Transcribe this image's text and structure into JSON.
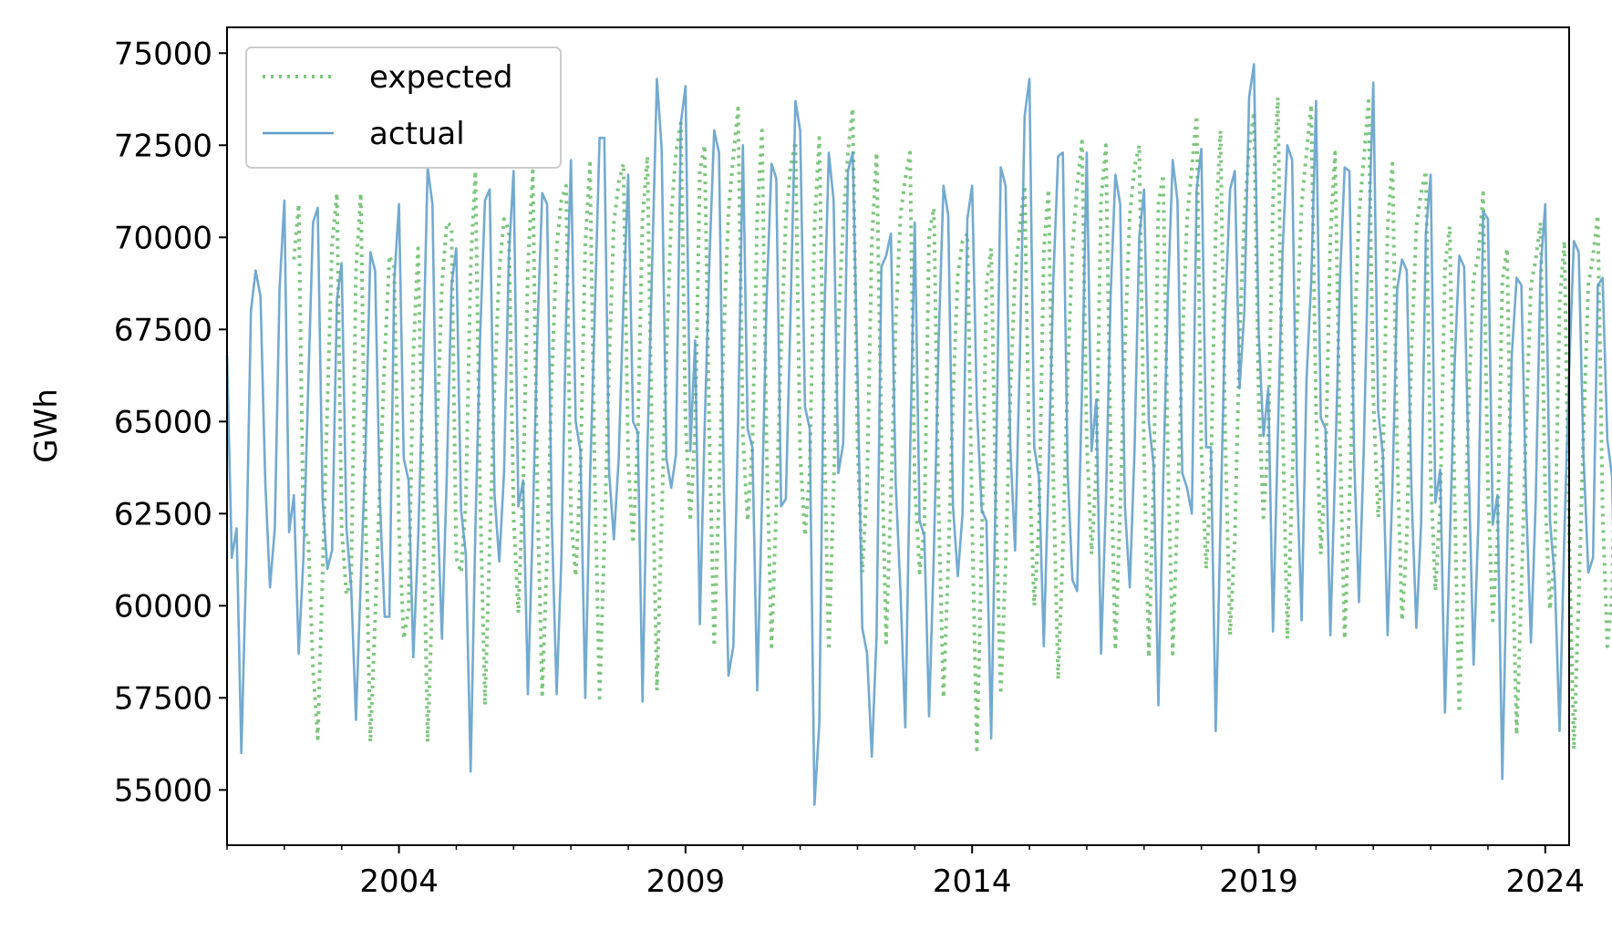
{
  "chart_data": {
    "type": "line",
    "title": "",
    "xlabel": "",
    "ylabel": "GWh",
    "xlim": [
      "2001-01",
      "2024-06"
    ],
    "ylim": [
      53500,
      75700
    ],
    "x_major_ticks": [
      "2004",
      "2009",
      "2014",
      "2019",
      "2024"
    ],
    "y_ticks": [
      55000,
      57500,
      60000,
      62500,
      65000,
      67500,
      70000,
      72500,
      75000
    ],
    "y_tick_labels": [
      "55000",
      "57500",
      "60000",
      "62500",
      "65000",
      "67500",
      "70000",
      "72500",
      "75000"
    ],
    "grid": false,
    "legend": {
      "position": "top-left"
    },
    "x_start": "2001-01",
    "frequency": "monthly",
    "series": [
      {
        "name": "expected",
        "style": "dotted",
        "color": "#5cb85c",
        "values": [
          null,
          null,
          null,
          null,
          null,
          null,
          null,
          null,
          null,
          null,
          null,
          null,
          null,
          null,
          69400,
          70900,
          62100,
          61800,
          58300,
          56400,
          60800,
          65400,
          69800,
          71200,
          62100,
          60300,
          60700,
          69100,
          71200,
          62500,
          56300,
          59600,
          63300,
          66700,
          69500,
          69200,
          62100,
          59100,
          59900,
          66800,
          69700,
          63300,
          56300,
          60300,
          65000,
          68700,
          70400,
          70300,
          61300,
          60900,
          62800,
          69200,
          71800,
          63000,
          57300,
          61600,
          66000,
          69100,
          70500,
          70200,
          62400,
          59800,
          63300,
          69200,
          71800,
          62900,
          57600,
          61400,
          66200,
          69700,
          71000,
          71400,
          62400,
          60800,
          63600,
          69800,
          72000,
          63400,
          57500,
          61700,
          66600,
          70400,
          71500,
          72000,
          63900,
          61700,
          64600,
          70500,
          72200,
          64300,
          57700,
          62400,
          66800,
          70600,
          72300,
          73100,
          65000,
          62300,
          64800,
          71800,
          72500,
          64500,
          58900,
          63100,
          67400,
          70700,
          72200,
          73500,
          64600,
          62300,
          64300,
          70600,
          72900,
          64200,
          58900,
          62700,
          67000,
          70500,
          71900,
          72600,
          64100,
          61900,
          63600,
          70300,
          72700,
          64800,
          58800,
          63200,
          67700,
          70400,
          72300,
          73500,
          64400,
          60900,
          63300,
          69900,
          72300,
          64700,
          59000,
          62900,
          67700,
          70600,
          71600,
          72300,
          63300,
          60900,
          62100,
          70100,
          70800,
          62600,
          57500,
          61100,
          65600,
          69000,
          69900,
          70100,
          62300,
          56100,
          61500,
          68700,
          69700,
          62500,
          57600,
          61100,
          65800,
          69000,
          70300,
          71400,
          63500,
          60000,
          62200,
          69600,
          71300,
          63500,
          58000,
          61500,
          66300,
          69700,
          71400,
          72600,
          64500,
          61400,
          63700,
          71000,
          72500,
          64300,
          58800,
          62600,
          67100,
          70600,
          71900,
          72500,
          64100,
          58600,
          63500,
          70900,
          71700,
          63900,
          58700,
          62600,
          67000,
          70500,
          71900,
          73300,
          64300,
          61000,
          63500,
          70300,
          72900,
          64600,
          59200,
          61800,
          67200,
          70600,
          72400,
          73400,
          65600,
          62400,
          64500,
          71000,
          73800,
          65100,
          59100,
          63300,
          67600,
          70900,
          72300,
          73600,
          65300,
          61400,
          63800,
          70000,
          72300,
          64500,
          59100,
          62800,
          67100,
          70600,
          72100,
          73700,
          65700,
          62400,
          63900,
          70300,
          72000,
          64200,
          59600,
          61800,
          66900,
          70300,
          71200,
          71800,
          63500,
          60400,
          62700,
          69200,
          70300,
          63100,
          57100,
          61100,
          65700,
          68900,
          69500,
          71200,
          63200,
          59600,
          61800,
          68800,
          69700,
          62000,
          56500,
          60400,
          65000,
          68700,
          69400,
          70400,
          62900,
          59900,
          61400,
          68200,
          69900,
          61800,
          56100,
          60200,
          64700,
          68700,
          69500,
          70600,
          62600,
          58900,
          60300,
          66700,
          68500,
          null
        ]
      },
      {
        "name": "actual",
        "style": "solid",
        "color": "#5b9bc8",
        "values": [
          66800,
          61300,
          62100,
          56000,
          61100,
          68000,
          69100,
          68400,
          63400,
          60500,
          62100,
          68600,
          71000,
          62000,
          63000,
          58700,
          61300,
          66000,
          70400,
          70800,
          62900,
          61000,
          61500,
          68300,
          69300,
          62100,
          60500,
          56900,
          60700,
          64200,
          69600,
          69100,
          62900,
          59700,
          59700,
          68800,
          70900,
          64000,
          63400,
          58600,
          61700,
          66300,
          71900,
          70900,
          62900,
          59100,
          63500,
          68700,
          69700,
          62600,
          61400,
          55500,
          62100,
          67300,
          71000,
          71300,
          63000,
          61200,
          63600,
          69500,
          71800,
          62700,
          63400,
          57600,
          62200,
          67500,
          71200,
          70900,
          62300,
          57600,
          61300,
          67800,
          72100,
          65000,
          64200,
          57500,
          63400,
          68000,
          72700,
          72700,
          63600,
          61800,
          64000,
          68300,
          71700,
          65000,
          64700,
          57400,
          64200,
          69200,
          74300,
          72400,
          64000,
          63200,
          64100,
          73100,
          74100,
          64200,
          67200,
          59500,
          64800,
          69400,
          72900,
          72300,
          63300,
          58100,
          58900,
          64900,
          72500,
          64800,
          64300,
          57700,
          62800,
          68400,
          72000,
          71600,
          62700,
          62900,
          68000,
          73700,
          72900,
          65400,
          64800,
          54600,
          56800,
          67500,
          72300,
          71000,
          63600,
          64400,
          71800,
          72300,
          66300,
          59400,
          58700,
          55900,
          59200,
          69200,
          69500,
          70100,
          63300,
          60400,
          56700,
          64000,
          70400,
          62300,
          61900,
          57000,
          61500,
          67200,
          71400,
          70600,
          62700,
          60800,
          62500,
          70500,
          71400,
          65400,
          62600,
          62300,
          56400,
          63700,
          71900,
          71400,
          64300,
          61500,
          66800,
          73300,
          74300,
          64300,
          63500,
          58900,
          63600,
          68800,
          72200,
          72300,
          63600,
          60700,
          60400,
          65900,
          72300,
          64200,
          65600,
          58700,
          62800,
          68400,
          71700,
          70900,
          62700,
          60500,
          64200,
          70000,
          71300,
          65000,
          63800,
          57300,
          63300,
          68500,
          72100,
          71000,
          63600,
          63200,
          62500,
          71300,
          72400,
          64300,
          64300,
          56600,
          62200,
          68000,
          71300,
          71800,
          65900,
          68000,
          73800,
          74700,
          67400,
          64600,
          65900,
          59300,
          64600,
          69600,
          72500,
          72100,
          63500,
          59600,
          66100,
          68800,
          73700,
          65100,
          64800,
          59200,
          63700,
          68800,
          71900,
          71800,
          63900,
          60100,
          64200,
          69900,
          74200,
          65300,
          64100,
          59200,
          63200,
          68600,
          69400,
          69100,
          63100,
          59400,
          62200,
          70100,
          71700,
          62800,
          63700,
          57100,
          61600,
          66500,
          69500,
          69200,
          63500,
          58400,
          62300,
          70700,
          70500,
          62200,
          63000,
          55300,
          61400,
          66800,
          68900,
          68700,
          62800,
          59000,
          62800,
          69100,
          70900,
          62300,
          60700,
          56600,
          62000,
          66400,
          69900,
          69600,
          64100,
          60900,
          61300,
          68700,
          68900,
          64500,
          63500,
          57300,
          62000,
          65900,
          68300
        ]
      }
    ]
  }
}
